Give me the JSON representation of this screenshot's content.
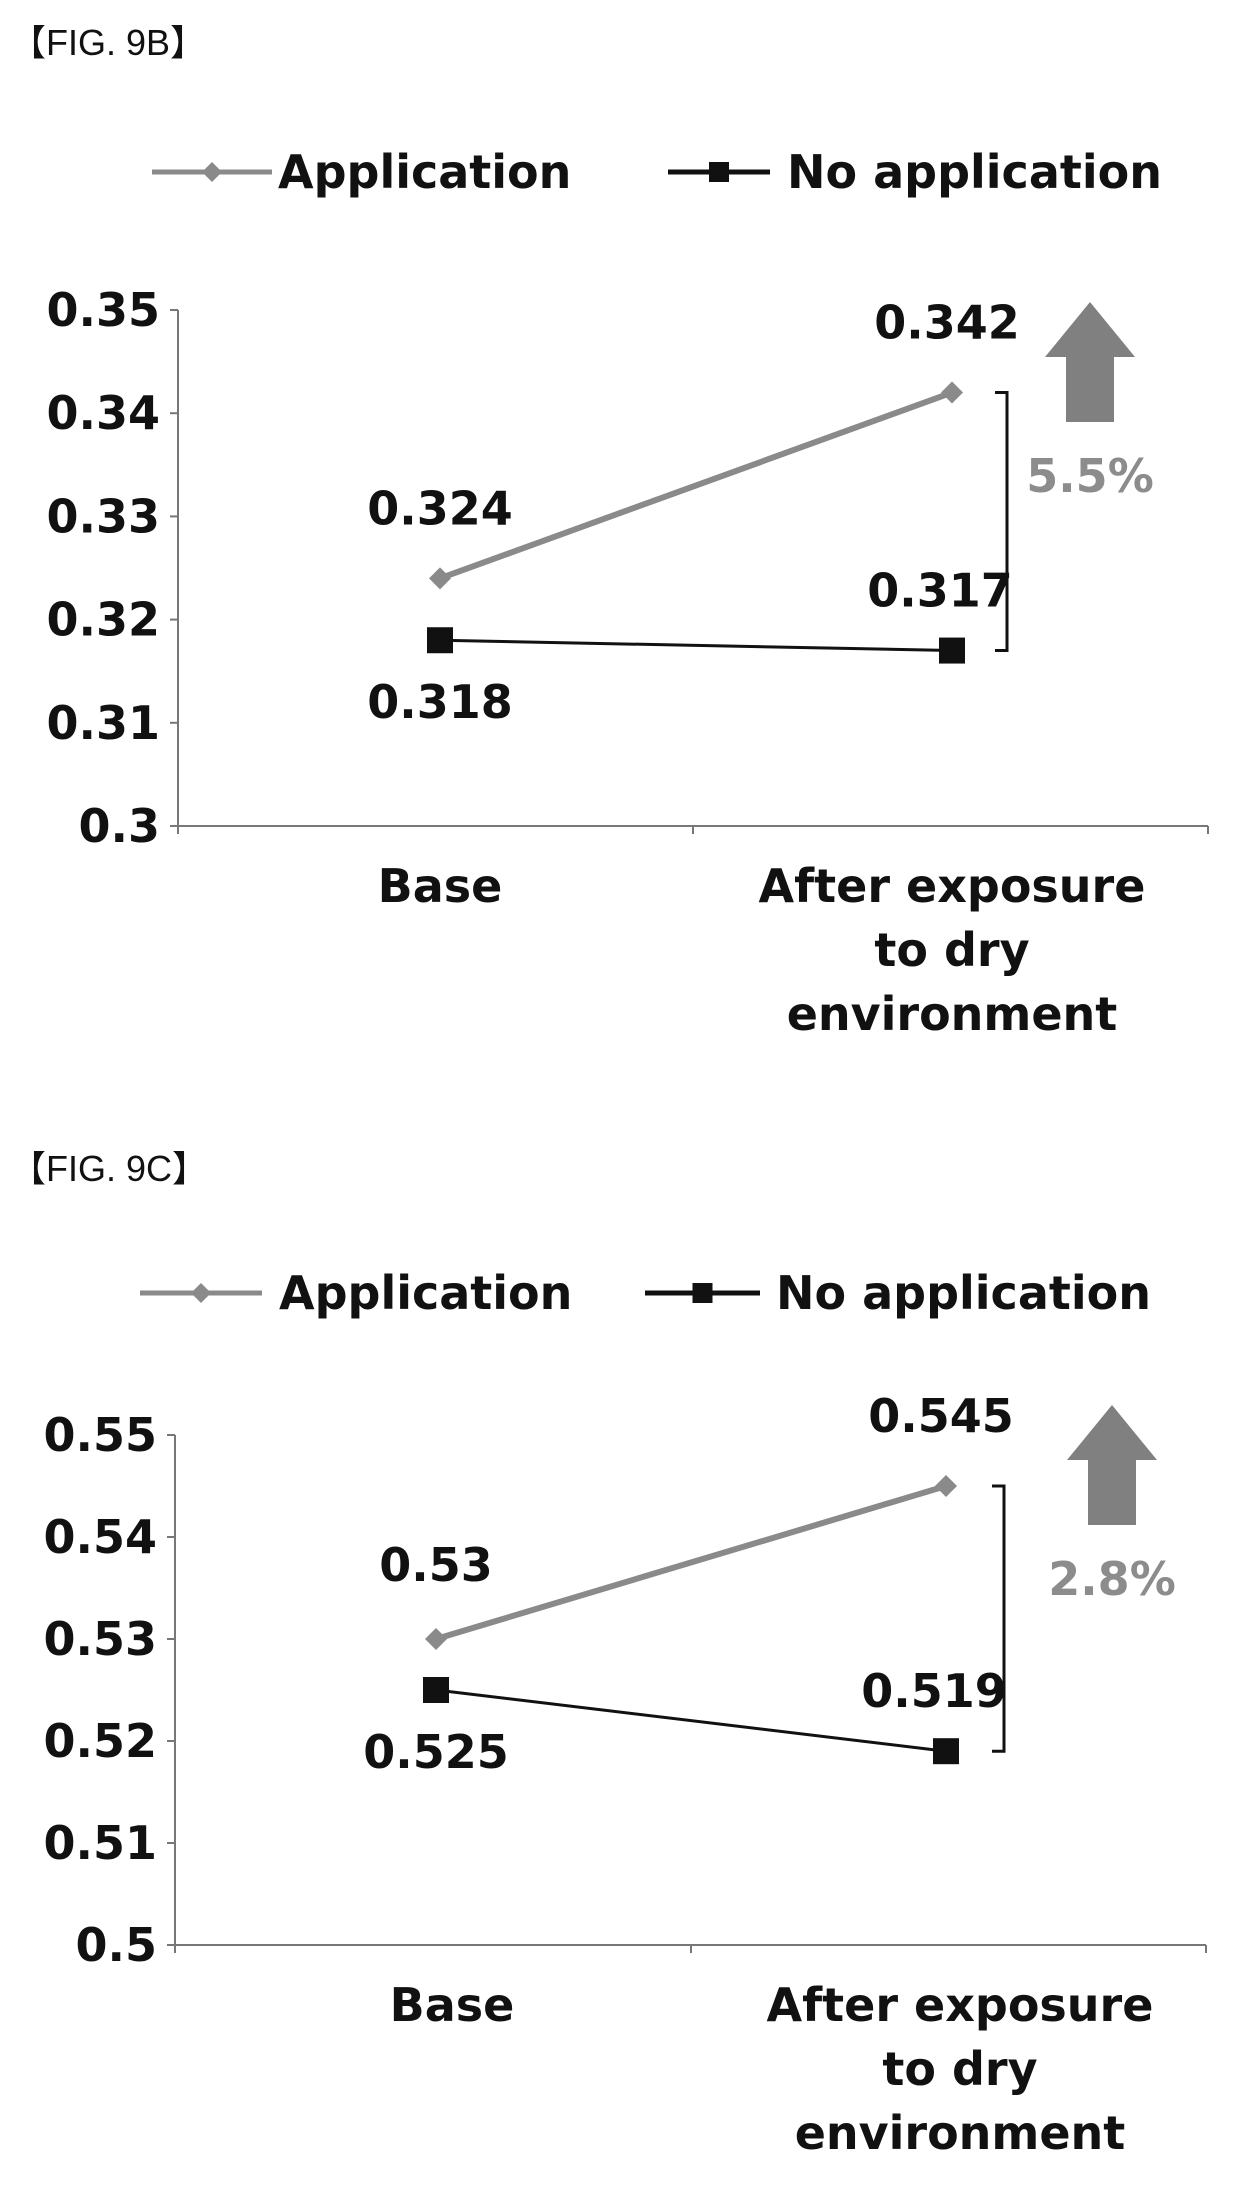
{
  "figures": [
    {
      "label": "【FIG. 9B】",
      "chart_data": {
        "type": "line",
        "categories": [
          "Base",
          "After exposure to dry environment"
        ],
        "category_lines": [
          [
            "Base"
          ],
          [
            "After exposure",
            "to dry",
            "environment"
          ]
        ],
        "series": [
          {
            "name": "Application",
            "values": [
              0.324,
              0.342
            ],
            "color": "#8a8a8a",
            "marker": "diamond"
          },
          {
            "name": "No application",
            "values": [
              0.318,
              0.317
            ],
            "color": "#111111",
            "marker": "square"
          }
        ],
        "data_labels": [
          [
            "0.324",
            "0.342"
          ],
          [
            "0.318",
            "0.317"
          ]
        ],
        "ylim": [
          0.3,
          0.35
        ],
        "yticks": [
          0.3,
          0.31,
          0.32,
          0.33,
          0.34,
          0.35
        ],
        "ytick_labels": [
          "0.3",
          "0.31",
          "0.32",
          "0.33",
          "0.34",
          "0.35"
        ],
        "legend_position": "top",
        "annotation": {
          "text": "5.5%",
          "color": "#8c8c8c",
          "arrow": "up"
        },
        "grid": false
      }
    },
    {
      "label": "【FIG. 9C】",
      "chart_data": {
        "type": "line",
        "categories": [
          "Base",
          "After exposure to dry environment"
        ],
        "category_lines": [
          [
            "Base"
          ],
          [
            "After exposure",
            "to dry",
            "environment"
          ]
        ],
        "series": [
          {
            "name": "Application",
            "values": [
              0.53,
              0.545
            ],
            "color": "#8a8a8a",
            "marker": "diamond"
          },
          {
            "name": "No application",
            "values": [
              0.525,
              0.519
            ],
            "color": "#111111",
            "marker": "square"
          }
        ],
        "data_labels": [
          [
            "0.53",
            "0.545"
          ],
          [
            "0.525",
            "0.519"
          ]
        ],
        "ylim": [
          0.5,
          0.55
        ],
        "yticks": [
          0.5,
          0.51,
          0.52,
          0.53,
          0.54,
          0.55
        ],
        "ytick_labels": [
          "0.5",
          "0.51",
          "0.52",
          "0.53",
          "0.54",
          "0.55"
        ],
        "legend_position": "top",
        "annotation": {
          "text": "2.8%",
          "color": "#8c8c8c",
          "arrow": "up"
        },
        "grid": false
      }
    }
  ]
}
